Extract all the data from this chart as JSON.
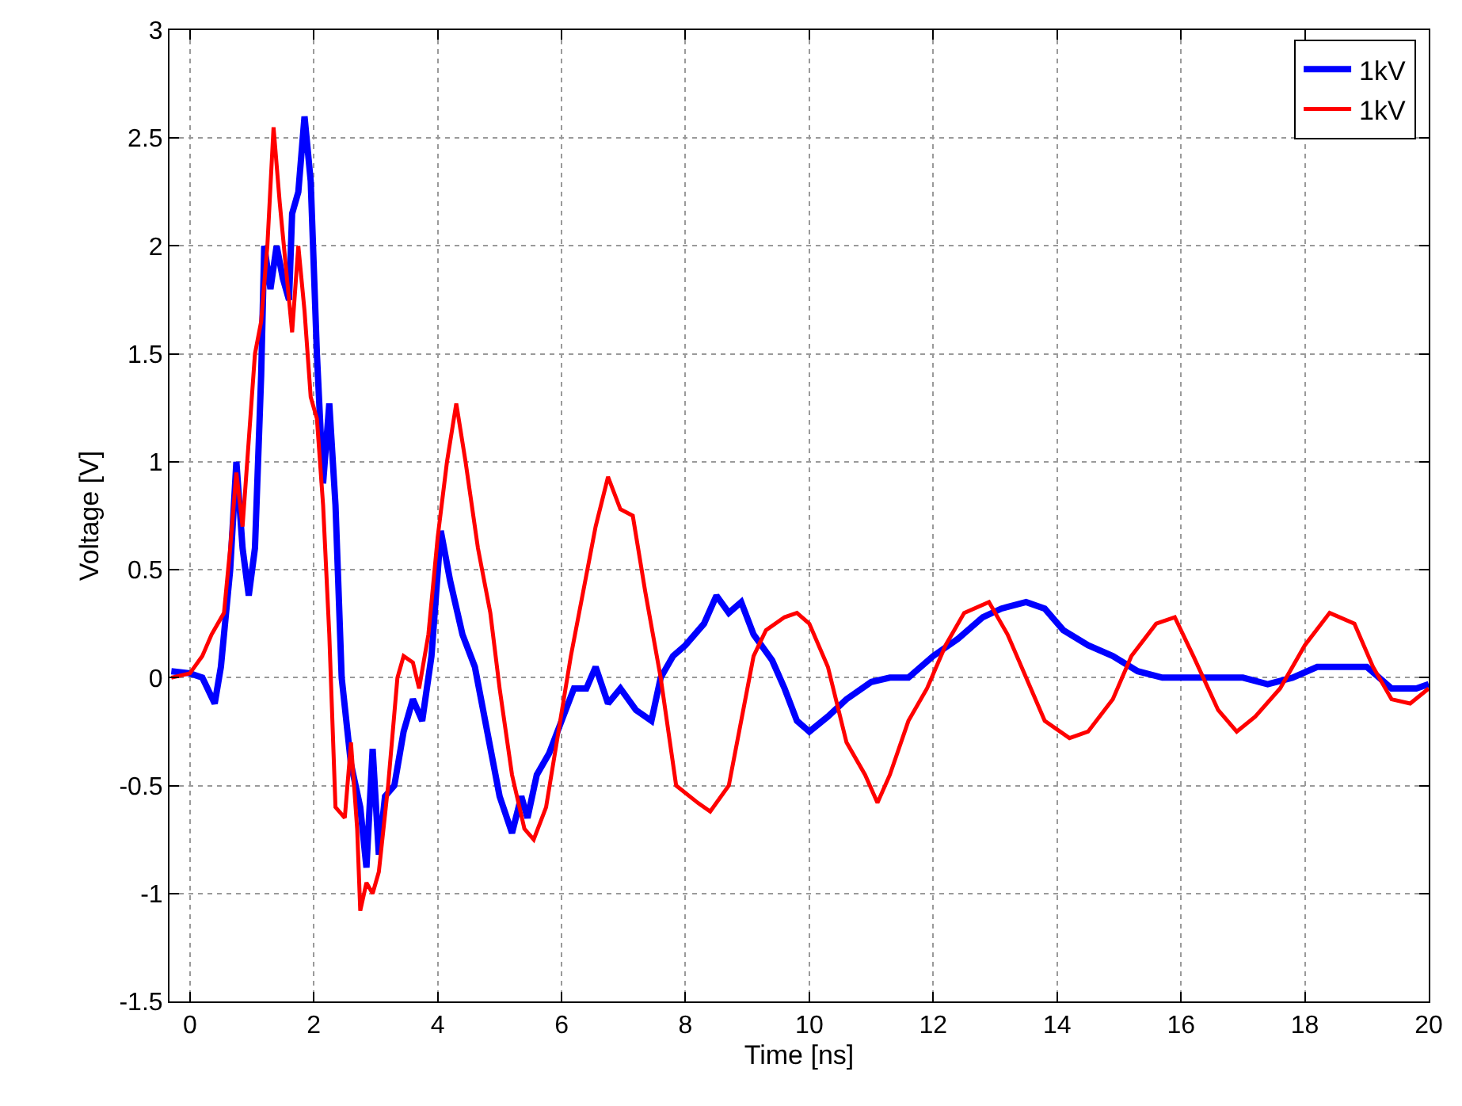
{
  "chart_data": {
    "type": "line",
    "xlabel": "Time [ns]",
    "ylabel": "Voltage [V]",
    "xlim": [
      -0.33,
      20
    ],
    "xticks": [
      0,
      2,
      4,
      6,
      8,
      10,
      12,
      14,
      16,
      18,
      20
    ],
    "ylim": [
      -1.5,
      3
    ],
    "yticks": [
      -1.5,
      -1,
      -0.5,
      0,
      0.5,
      1,
      1.5,
      2,
      2.5,
      3
    ],
    "grid": true,
    "legend": "top right",
    "marker": "none",
    "line_style": "solid",
    "series": [
      {
        "name": "1kV",
        "color": "#0000ff",
        "x": [
          -0.3,
          0,
          0.2,
          0.4,
          0.5,
          0.65,
          0.75,
          0.85,
          0.95,
          1.05,
          1.15,
          1.2,
          1.3,
          1.4,
          1.5,
          1.6,
          1.65,
          1.75,
          1.85,
          1.95,
          2.05,
          2.15,
          2.25,
          2.35,
          2.45,
          2.6,
          2.75,
          2.85,
          2.95,
          3.05,
          3.15,
          3.3,
          3.45,
          3.6,
          3.75,
          3.9,
          4.05,
          4.2,
          4.4,
          4.6,
          4.8,
          5.0,
          5.2,
          5.35,
          5.45,
          5.6,
          5.8,
          6.0,
          6.2,
          6.4,
          6.55,
          6.75,
          6.95,
          7.2,
          7.45,
          7.6,
          7.8,
          8.0,
          8.3,
          8.5,
          8.7,
          8.9,
          9.1,
          9.4,
          9.6,
          9.8,
          10.0,
          10.3,
          10.6,
          11.0,
          11.3,
          11.6,
          12.0,
          12.4,
          12.8,
          13.1,
          13.5,
          13.8,
          14.1,
          14.5,
          14.9,
          15.3,
          15.7,
          16.1,
          16.6,
          17.0,
          17.4,
          17.8,
          18.2,
          18.6,
          19.0,
          19.4,
          19.8,
          20.0
        ],
        "values": [
          0.03,
          0.02,
          0.0,
          -0.12,
          0.05,
          0.5,
          1.0,
          0.6,
          0.38,
          0.6,
          1.4,
          2.0,
          1.8,
          2.0,
          1.85,
          1.75,
          2.15,
          2.25,
          2.6,
          2.3,
          1.5,
          0.9,
          1.27,
          0.8,
          0.0,
          -0.4,
          -0.6,
          -0.88,
          -0.33,
          -0.82,
          -0.55,
          -0.5,
          -0.25,
          -0.1,
          -0.2,
          0.1,
          0.68,
          0.45,
          0.2,
          0.05,
          -0.25,
          -0.55,
          -0.72,
          -0.55,
          -0.65,
          -0.45,
          -0.35,
          -0.2,
          -0.05,
          -0.05,
          0.05,
          -0.12,
          -0.05,
          -0.15,
          -0.2,
          0.0,
          0.1,
          0.15,
          0.25,
          0.38,
          0.3,
          0.35,
          0.2,
          0.08,
          -0.05,
          -0.2,
          -0.25,
          -0.18,
          -0.1,
          -0.02,
          0.0,
          0.0,
          0.1,
          0.18,
          0.28,
          0.32,
          0.35,
          0.32,
          0.22,
          0.15,
          0.1,
          0.03,
          0.0,
          0.0,
          0.0,
          0.0,
          -0.03,
          0.0,
          0.05,
          0.05,
          0.05,
          -0.05,
          -0.05,
          -0.03
        ]
      },
      {
        "name": "1kV",
        "color": "#ff0000",
        "x": [
          -0.3,
          0,
          0.2,
          0.35,
          0.55,
          0.65,
          0.75,
          0.85,
          0.95,
          1.05,
          1.15,
          1.25,
          1.35,
          1.45,
          1.55,
          1.65,
          1.75,
          1.85,
          1.95,
          2.05,
          2.15,
          2.25,
          2.35,
          2.5,
          2.6,
          2.7,
          2.75,
          2.85,
          2.95,
          3.05,
          3.2,
          3.35,
          3.45,
          3.6,
          3.7,
          3.85,
          4.0,
          4.15,
          4.3,
          4.45,
          4.65,
          4.85,
          5.0,
          5.2,
          5.4,
          5.55,
          5.75,
          5.95,
          6.15,
          6.35,
          6.55,
          6.75,
          6.95,
          7.15,
          7.35,
          7.6,
          7.85,
          8.2,
          8.4,
          8.7,
          8.9,
          9.1,
          9.3,
          9.6,
          9.8,
          10.0,
          10.3,
          10.6,
          10.9,
          11.1,
          11.3,
          11.6,
          11.9,
          12.2,
          12.5,
          12.9,
          13.2,
          13.5,
          13.8,
          14.2,
          14.5,
          14.9,
          15.2,
          15.6,
          15.9,
          16.2,
          16.6,
          16.9,
          17.2,
          17.6,
          18.0,
          18.4,
          18.8,
          19.1,
          19.4,
          19.7,
          20.0
        ],
        "values": [
          0.0,
          0.02,
          0.1,
          0.2,
          0.3,
          0.6,
          0.95,
          0.7,
          1.1,
          1.5,
          1.65,
          2.0,
          2.55,
          2.2,
          1.9,
          1.6,
          2.0,
          1.7,
          1.3,
          1.2,
          0.8,
          0.2,
          -0.6,
          -0.65,
          -0.3,
          -0.7,
          -1.08,
          -0.95,
          -1.0,
          -0.9,
          -0.5,
          0.0,
          0.1,
          0.07,
          -0.05,
          0.2,
          0.65,
          1.0,
          1.27,
          1.0,
          0.6,
          0.3,
          -0.05,
          -0.45,
          -0.7,
          -0.75,
          -0.6,
          -0.25,
          0.1,
          0.4,
          0.7,
          0.93,
          0.78,
          0.75,
          0.4,
          0.0,
          -0.5,
          -0.58,
          -0.62,
          -0.5,
          -0.2,
          0.1,
          0.22,
          0.28,
          0.3,
          0.25,
          0.05,
          -0.3,
          -0.45,
          -0.58,
          -0.45,
          -0.2,
          -0.05,
          0.15,
          0.3,
          0.35,
          0.2,
          0.0,
          -0.2,
          -0.28,
          -0.25,
          -0.1,
          0.1,
          0.25,
          0.28,
          0.1,
          -0.15,
          -0.25,
          -0.18,
          -0.05,
          0.15,
          0.3,
          0.25,
          0.05,
          -0.1,
          -0.12,
          -0.05
        ]
      }
    ]
  }
}
